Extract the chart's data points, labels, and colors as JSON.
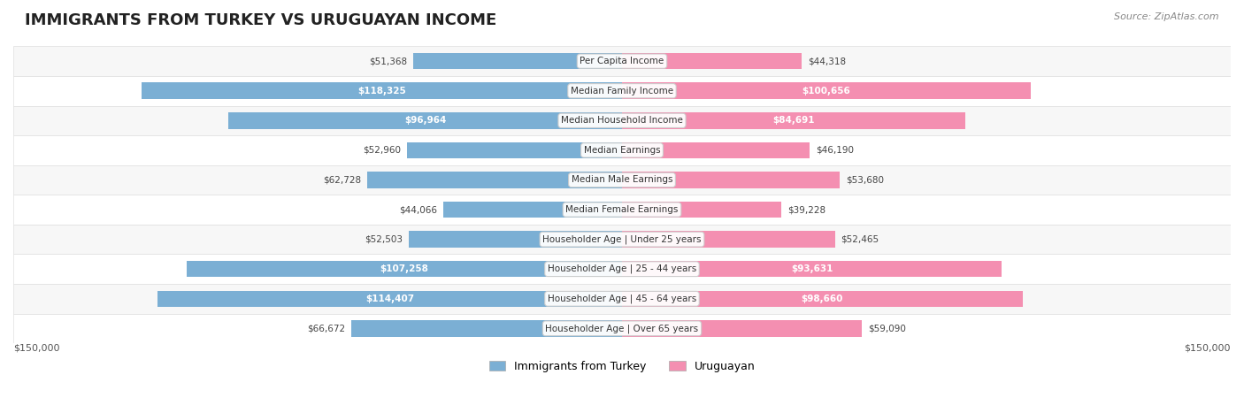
{
  "title": "IMMIGRANTS FROM TURKEY VS URUGUAYAN INCOME",
  "source": "Source: ZipAtlas.com",
  "categories": [
    "Per Capita Income",
    "Median Family Income",
    "Median Household Income",
    "Median Earnings",
    "Median Male Earnings",
    "Median Female Earnings",
    "Householder Age | Under 25 years",
    "Householder Age | 25 - 44 years",
    "Householder Age | 45 - 64 years",
    "Householder Age | Over 65 years"
  ],
  "turkey_values": [
    51368,
    118325,
    96964,
    52960,
    62728,
    44066,
    52503,
    107258,
    114407,
    66672
  ],
  "uruguay_values": [
    44318,
    100656,
    84691,
    46190,
    53680,
    39228,
    52465,
    93631,
    98660,
    59090
  ],
  "turkey_color": "#7bafd4",
  "turkey_color_dark": "#5b9abf",
  "uruguay_color": "#f48fb1",
  "uruguay_color_dark": "#e06090",
  "max_value": 150000,
  "background_color": "#ffffff",
  "row_bg_color": "#f0f0f0",
  "label_color": "#333333",
  "turkey_label": "Immigrants from Turkey",
  "uruguay_label": "Uruguayan",
  "turkey_text_threshold": 80000,
  "uruguay_text_threshold": 80000
}
